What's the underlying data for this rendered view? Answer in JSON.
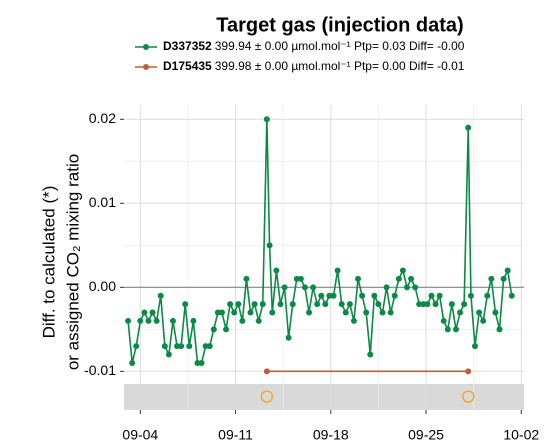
{
  "chart_data": {
    "type": "line",
    "title": "Target gas (injection data)",
    "ylabel": [
      "Diff. to calculated (*)",
      "or assigned CO₂ mixing ratio"
    ],
    "xlim": [
      -1.2,
      28.2
    ],
    "xticks": [
      {
        "value": 0,
        "label": "09-04"
      },
      {
        "value": 7,
        "label": "09-11"
      },
      {
        "value": 14,
        "label": "09-18"
      },
      {
        "value": 21,
        "label": "09-25"
      },
      {
        "value": 28,
        "label": "10-02"
      }
    ],
    "ylim": [
      -0.0146,
      0.0217
    ],
    "yticks": [
      -0.01,
      {
        "value": 0,
        "label": "0.00"
      },
      0.01,
      0.02
    ],
    "grid": true,
    "minor_grid": true,
    "hline": 0,
    "band": {
      "ylim": [
        -0.0146,
        -0.0115
      ],
      "color": "#d9d9d9"
    },
    "series": [
      {
        "name": "D337352",
        "legend_label": "399.94 ± 0.00 µmol.mol⁻¹ Ptp= 0.03 Diff= -0.00",
        "color": "#0a8a45",
        "x": [
          -0.9,
          -0.6,
          -0.3,
          0.0,
          0.3,
          0.6,
          0.9,
          1.2,
          1.5,
          1.8,
          2.1,
          2.4,
          2.7,
          3.0,
          3.3,
          3.6,
          3.9,
          4.2,
          4.5,
          4.8,
          5.1,
          5.4,
          5.7,
          6.0,
          6.3,
          6.6,
          6.9,
          7.2,
          7.5,
          7.8,
          8.1,
          8.4,
          8.7,
          9.0,
          9.3,
          9.5,
          9.7,
          10.0,
          10.3,
          10.6,
          10.9,
          11.2,
          11.5,
          11.8,
          12.1,
          12.4,
          12.7,
          13.0,
          13.3,
          13.6,
          13.9,
          14.2,
          14.5,
          14.8,
          15.1,
          15.4,
          15.7,
          16.0,
          16.3,
          16.6,
          16.9,
          17.2,
          17.5,
          17.8,
          18.1,
          18.4,
          18.7,
          19.0,
          19.3,
          19.6,
          19.9,
          20.2,
          20.5,
          20.8,
          21.1,
          21.4,
          21.7,
          22.0,
          22.3,
          22.6,
          22.9,
          23.2,
          23.5,
          23.8,
          24.1,
          24.3,
          24.6,
          24.9,
          25.2,
          25.5,
          25.8,
          26.1,
          26.4,
          26.7,
          27.0,
          27.3
        ],
        "values": [
          -0.004,
          -0.009,
          -0.007,
          -0.004,
          -0.003,
          -0.004,
          -0.003,
          -0.004,
          -0.001,
          -0.007,
          -0.008,
          -0.004,
          -0.007,
          -0.007,
          -0.002,
          -0.007,
          -0.004,
          -0.009,
          -0.009,
          -0.007,
          -0.007,
          -0.005,
          -0.003,
          -0.003,
          -0.005,
          -0.002,
          -0.003,
          -0.002,
          -0.004,
          0.001,
          -0.003,
          -0.002,
          -0.004,
          -0.002,
          0.02,
          0.005,
          -0.003,
          0.002,
          -0.002,
          0.0,
          -0.006,
          -0.002,
          0.001,
          0.001,
          0.0,
          -0.003,
          0.0,
          -0.002,
          -0.001,
          -0.002,
          -0.001,
          -0.001,
          0.002,
          -0.002,
          -0.003,
          -0.002,
          -0.004,
          0.001,
          -0.001,
          -0.003,
          -0.008,
          -0.001,
          -0.002,
          -0.003,
          0.0,
          -0.003,
          -0.001,
          0.001,
          0.002,
          0.0,
          0.001,
          0.0,
          -0.002,
          -0.002,
          -0.002,
          -0.001,
          -0.002,
          -0.001,
          -0.004,
          -0.005,
          -0.002,
          -0.005,
          -0.003,
          -0.002,
          0.019,
          -0.001,
          -0.007,
          -0.003,
          -0.004,
          -0.001,
          0.001,
          -0.003,
          -0.005,
          0.001,
          0.002,
          -0.001
        ]
      },
      {
        "name": "D175435",
        "legend_label": "399.98 ± 0.00 µmol.mol⁻¹ Ptp= 0.00 Diff= -0.01",
        "color": "#b5623a",
        "x": [
          9.3,
          24.1
        ],
        "values": [
          -0.01,
          -0.01
        ]
      }
    ],
    "markers": {
      "x": [
        9.3,
        24.1
      ],
      "values": [
        -0.013,
        -0.013
      ],
      "color": "#f5a623"
    }
  }
}
